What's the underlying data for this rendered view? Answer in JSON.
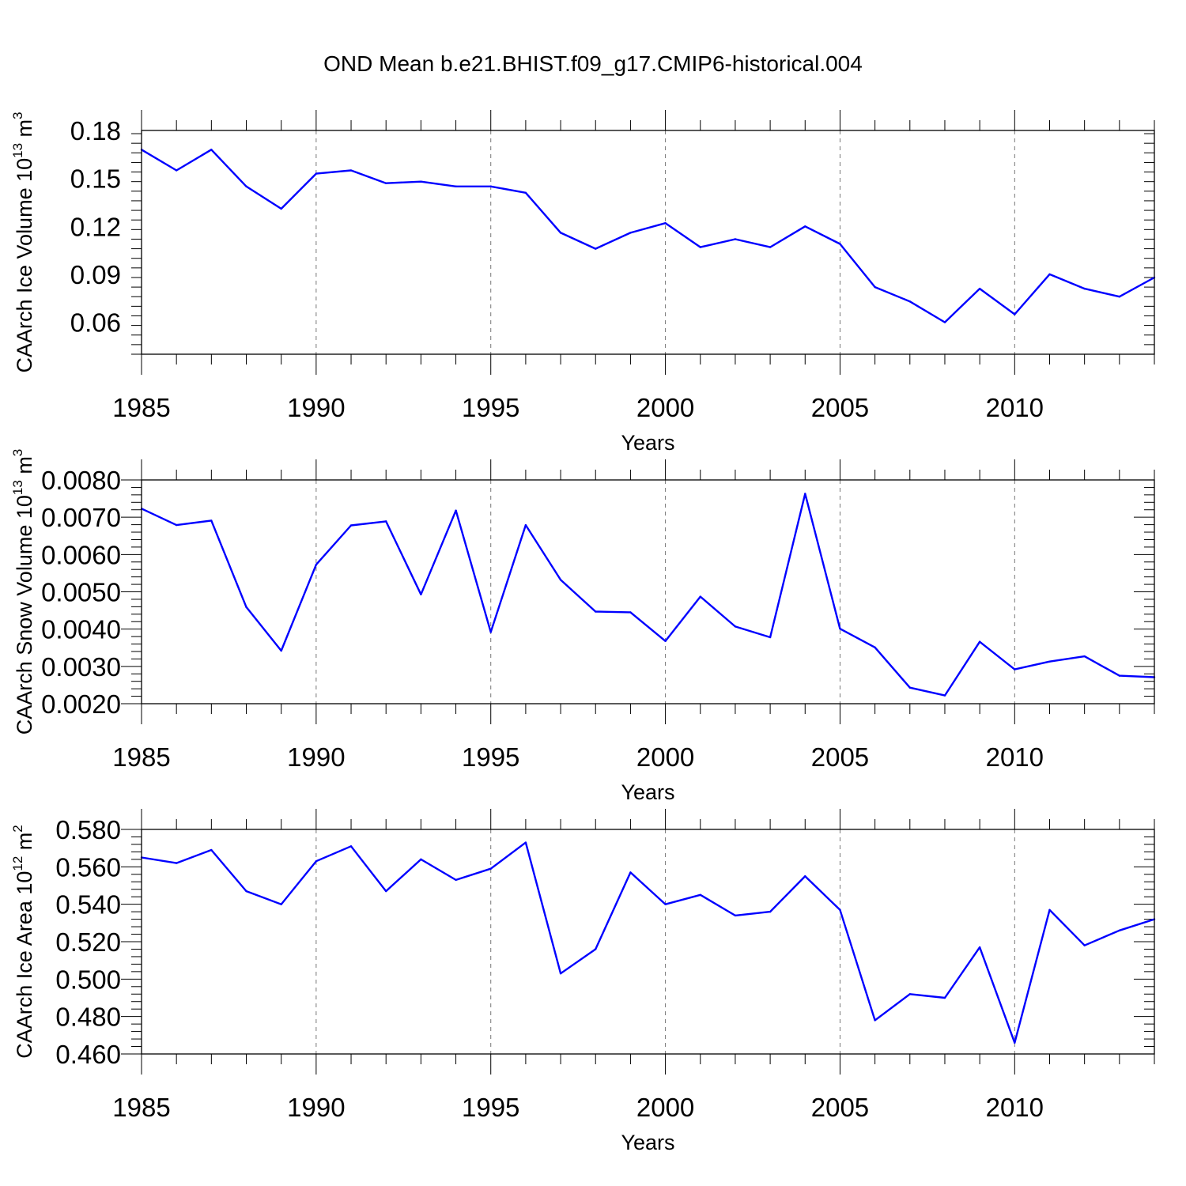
{
  "title": "OND Mean b.e21.BHIST.f09_g17.CMIP6-historical.004",
  "colors": {
    "series": "#0000ff",
    "frame": "#000000",
    "grid": "#777777"
  },
  "chart_data": [
    {
      "type": "line",
      "ylabel": "CAArch Ice Volume 10",
      "ylabel_sup": "13",
      "ylabel_unit": " m",
      "ylabel_unit_sup": "3",
      "xlabel": "Years",
      "xlim": [
        1985,
        2014
      ],
      "ylim": [
        0.04,
        0.18
      ],
      "yticks": [
        "0.06",
        "0.09",
        "0.12",
        "0.15",
        "0.18"
      ],
      "xticks": [
        "1985",
        "1990",
        "1995",
        "2000",
        "2005",
        "2010"
      ],
      "grid": "vertical dashed at labeled years",
      "x": [
        1985,
        1986,
        1987,
        1988,
        1989,
        1990,
        1991,
        1992,
        1993,
        1994,
        1995,
        1996,
        1997,
        1998,
        1999,
        2000,
        2001,
        2002,
        2003,
        2004,
        2005,
        2006,
        2007,
        2008,
        2009,
        2010,
        2011,
        2012,
        2013,
        2014
      ],
      "values": [
        0.168,
        0.155,
        0.168,
        0.145,
        0.131,
        0.153,
        0.155,
        0.147,
        0.148,
        0.145,
        0.145,
        0.141,
        0.116,
        0.106,
        0.116,
        0.122,
        0.107,
        0.112,
        0.107,
        0.12,
        0.109,
        0.082,
        0.073,
        0.06,
        0.081,
        0.065,
        0.09,
        0.081,
        0.076,
        0.088
      ]
    },
    {
      "type": "line",
      "ylabel": "CAArch Snow Volume 10",
      "ylabel_sup": "13",
      "ylabel_unit": " m",
      "ylabel_unit_sup": "3",
      "xlabel": "Years",
      "xlim": [
        1985,
        2014
      ],
      "ylim": [
        0.002,
        0.008
      ],
      "yticks": [
        "0.0020",
        "0.0030",
        "0.0040",
        "0.0050",
        "0.0060",
        "0.0070",
        "0.0080"
      ],
      "xticks": [
        "1985",
        "1990",
        "1995",
        "2000",
        "2005",
        "2010"
      ],
      "grid": "vertical dashed at labeled years",
      "x": [
        1985,
        1986,
        1987,
        1988,
        1989,
        1990,
        1991,
        1992,
        1993,
        1994,
        1995,
        1996,
        1997,
        1998,
        1999,
        2000,
        2001,
        2002,
        2003,
        2004,
        2005,
        2006,
        2007,
        2008,
        2009,
        2010,
        2011,
        2012,
        2013,
        2014
      ],
      "values": [
        0.00723,
        0.00679,
        0.00691,
        0.00459,
        0.00342,
        0.00573,
        0.00678,
        0.00689,
        0.00493,
        0.00718,
        0.00392,
        0.00679,
        0.00532,
        0.00447,
        0.00445,
        0.00368,
        0.00487,
        0.00407,
        0.00378,
        0.00763,
        0.00401,
        0.00351,
        0.00243,
        0.00222,
        0.00366,
        0.00292,
        0.00313,
        0.00327,
        0.00275,
        0.00271
      ]
    },
    {
      "type": "line",
      "ylabel": "CAArch Ice Area 10",
      "ylabel_sup": "12",
      "ylabel_unit": " m",
      "ylabel_unit_sup": "2",
      "xlabel": "Years",
      "xlim": [
        1985,
        2014
      ],
      "ylim": [
        0.46,
        0.58
      ],
      "yticks": [
        "0.460",
        "0.480",
        "0.500",
        "0.520",
        "0.540",
        "0.560",
        "0.580"
      ],
      "xticks": [
        "1985",
        "1990",
        "1995",
        "2000",
        "2005",
        "2010"
      ],
      "grid": "vertical dashed at labeled years",
      "x": [
        1985,
        1986,
        1987,
        1988,
        1989,
        1990,
        1991,
        1992,
        1993,
        1994,
        1995,
        1996,
        1997,
        1998,
        1999,
        2000,
        2001,
        2002,
        2003,
        2004,
        2005,
        2006,
        2007,
        2008,
        2009,
        2010,
        2011,
        2012,
        2013,
        2014
      ],
      "values": [
        0.565,
        0.562,
        0.569,
        0.547,
        0.54,
        0.563,
        0.571,
        0.547,
        0.564,
        0.553,
        0.559,
        0.573,
        0.503,
        0.516,
        0.557,
        0.54,
        0.545,
        0.534,
        0.536,
        0.555,
        0.537,
        0.478,
        0.492,
        0.49,
        0.517,
        0.466,
        0.537,
        0.518,
        0.526,
        0.532
      ]
    }
  ]
}
